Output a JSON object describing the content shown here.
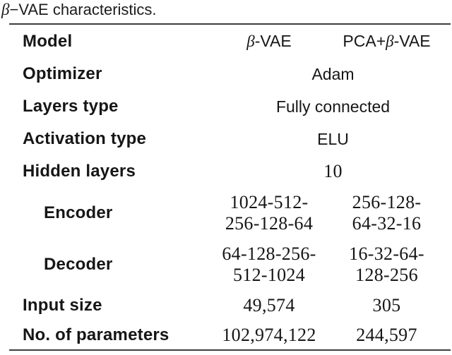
{
  "caption": {
    "beta": "β",
    "rest": "−VAE characteristics."
  },
  "table": {
    "header": {
      "label": "Model",
      "beta_vae_beta": "β",
      "beta_vae_rest": "-VAE",
      "pca_prefix": "PCA+",
      "pca_beta": "β",
      "pca_rest": "-VAE"
    },
    "rows": [
      {
        "label": "Optimizer",
        "value": "Adam"
      },
      {
        "label": "Layers type",
        "value": "Fully connected"
      },
      {
        "label": "Activation type",
        "value": "ELU"
      },
      {
        "label": "Hidden layers",
        "value": "10"
      },
      {
        "label": "Encoder",
        "beta_vae": [
          "1024-512-",
          "256-128-64"
        ],
        "pca_beta_vae": [
          "256-128-",
          "64-32-16"
        ]
      },
      {
        "label": "Decoder",
        "beta_vae": [
          "64-128-256-",
          "512-1024"
        ],
        "pca_beta_vae": [
          "16-32-64-",
          "128-256"
        ]
      },
      {
        "label": "Input size",
        "beta_vae": "49,574",
        "pca_beta_vae": "305"
      },
      {
        "label": "No. of parameters",
        "beta_vae": "102,974,122",
        "pca_beta_vae": "244,597"
      }
    ]
  },
  "colors": {
    "text": "#161616",
    "rule": "#3d3d3d",
    "background": "#ffffff"
  }
}
